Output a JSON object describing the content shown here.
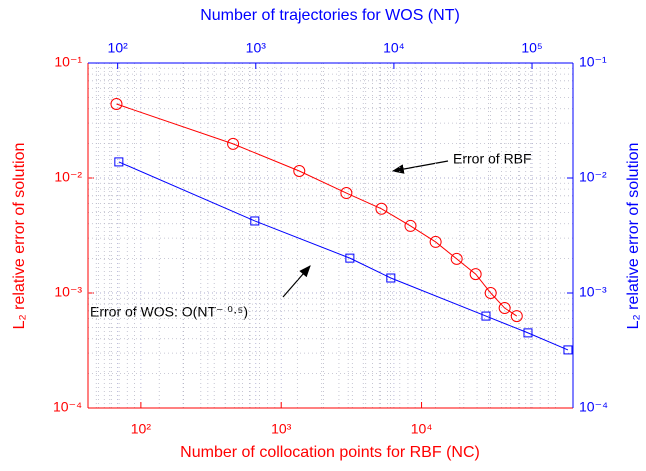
{
  "chart_data": {
    "type": "line",
    "xlabel": "Number of collocation points for RBF (NC)",
    "x2label": "Number of trajectories for WOS (NT)",
    "ylabel": "L₂ relative error of solution",
    "y2label": "L₂ relative error of solution",
    "log_x": true,
    "log_y": true,
    "grid": true,
    "xlim": [
      42,
      120000
    ],
    "xticks": [
      {
        "value": 100,
        "label": "10²"
      },
      {
        "value": 1000,
        "label": "10³"
      },
      {
        "value": 10000,
        "label": "10⁴"
      }
    ],
    "x2lim": [
      61,
      198000
    ],
    "x2ticks": [
      {
        "value": 100,
        "label": "10²"
      },
      {
        "value": 1000,
        "label": "10³"
      },
      {
        "value": 10000,
        "label": "10⁴"
      },
      {
        "value": 100000,
        "label": "10⁵"
      }
    ],
    "ylim": [
      0.0001,
      0.1
    ],
    "yticks": [
      {
        "value": 0.0001,
        "label": "10⁻⁴"
      },
      {
        "value": 0.001,
        "label": "10⁻³"
      },
      {
        "value": 0.01,
        "label": "10⁻²"
      },
      {
        "value": 0.1,
        "label": "10⁻¹"
      }
    ],
    "y2lim": [
      0.0001,
      0.1
    ],
    "y2ticks": [
      {
        "value": 0.0001,
        "label": "10⁻⁴"
      },
      {
        "value": 0.001,
        "label": "10⁻³"
      },
      {
        "value": 0.01,
        "label": "10⁻²"
      },
      {
        "value": 0.1,
        "label": "10⁻¹"
      }
    ],
    "series": [
      {
        "color": "#ff0000",
        "marker": "circle",
        "x": [
          67,
          454,
          1345,
          2913,
          5180,
          8340,
          12600,
          17800,
          24300,
          31100,
          39100,
          47700
        ],
        "values": [
          0.044,
          0.0198,
          0.0115,
          0.0074,
          0.0054,
          0.00383,
          0.00278,
          0.00198,
          0.00146,
          0.001,
          0.00074,
          0.00063
        ]
      },
      {
        "color": "#0000ff",
        "marker": "square",
        "xaxis": "x2",
        "axis": "y2",
        "x": [
          102,
          984,
          4800,
          9500,
          46400,
          93500,
          182000
        ],
        "values": [
          0.0138,
          0.00423,
          0.00201,
          0.00135,
          0.00063,
          0.00045,
          0.00032
        ]
      }
    ],
    "annotations": [
      {
        "text": "Error of RBF",
        "color": "#000000"
      },
      {
        "text": "Error of WOS: O(NT⁻ ⁰·⁵)",
        "color": "#000000"
      }
    ]
  }
}
